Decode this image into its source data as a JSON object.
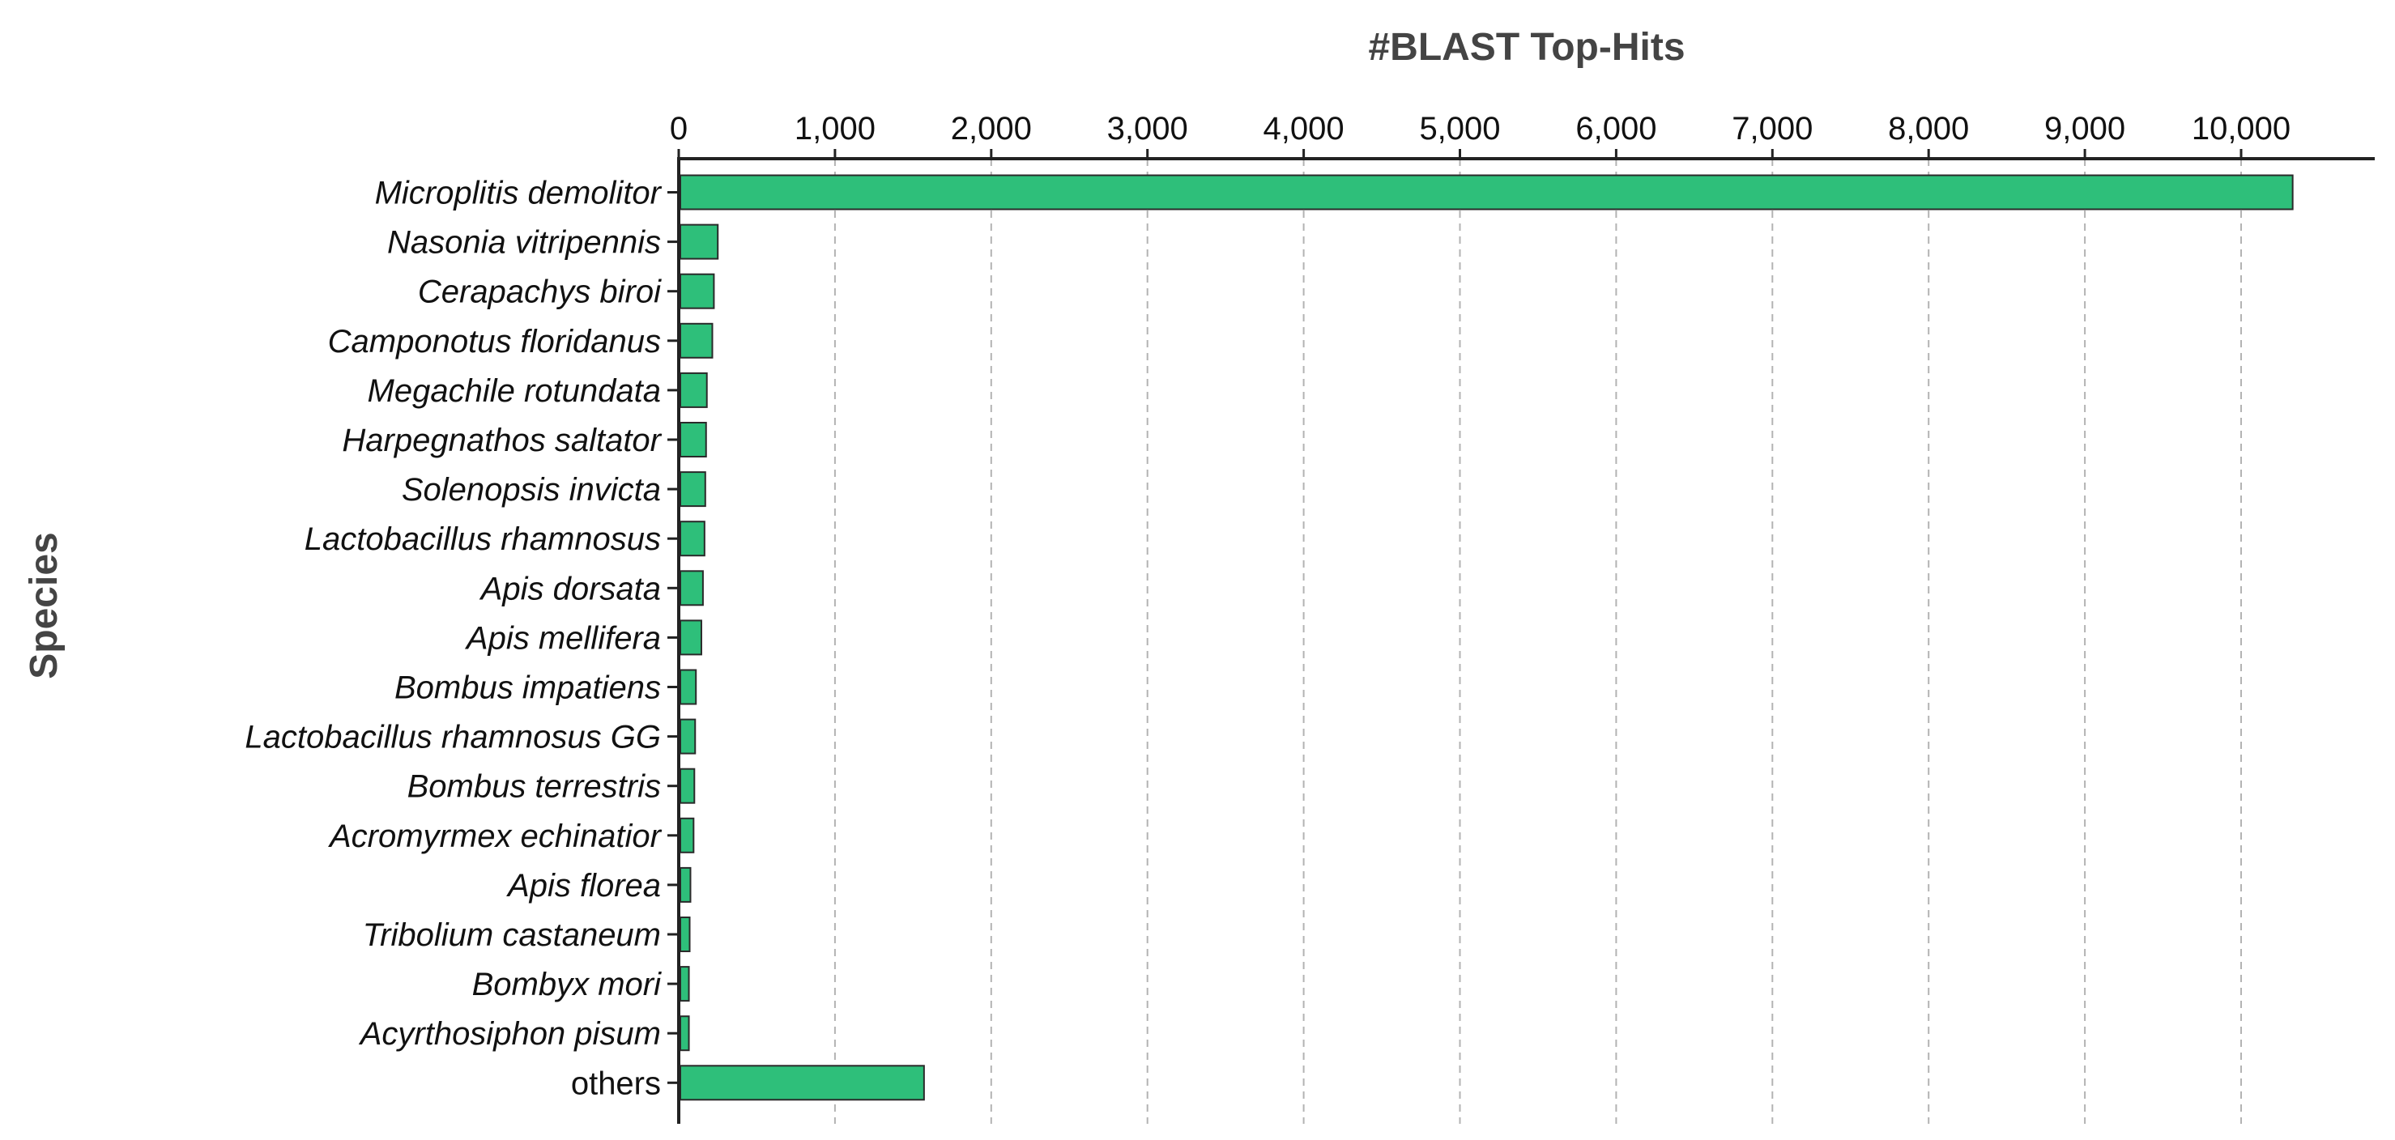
{
  "chart_data": {
    "type": "bar",
    "orientation": "horizontal",
    "xlabel": "#BLAST Top-Hits",
    "ylabel": "Species",
    "xaxis_position": "top",
    "xlim": [
      0,
      10800
    ],
    "xticks": [
      0,
      1000,
      2000,
      3000,
      4000,
      5000,
      6000,
      7000,
      8000,
      9000,
      10000
    ],
    "xtick_labels": [
      "0",
      "1,000",
      "2,000",
      "3,000",
      "4,000",
      "5,000",
      "6,000",
      "7,000",
      "8,000",
      "9,000",
      "10,000"
    ],
    "grid": "vertical dashed",
    "bar_color": "#2EBF7A",
    "categories": [
      "Microplitis demolitor",
      "Nasonia vitripennis",
      "Cerapachys biroi",
      "Camponotus floridanus",
      "Megachile rotundata",
      "Harpegnathos saltator",
      "Solenopsis invicta",
      "Lactobacillus rhamnosus",
      "Apis dorsata",
      "Apis mellifera",
      "Bombus impatiens",
      "Lactobacillus rhamnosus GG",
      "Bombus terrestris",
      "Acromyrmex echinatior",
      "Apis florea",
      "Tribolium castaneum",
      "Bombyx mori",
      "Acyrthosiphon pisum",
      "others"
    ],
    "italic_categories": [
      true,
      true,
      true,
      true,
      true,
      true,
      true,
      true,
      true,
      true,
      true,
      true,
      true,
      true,
      true,
      true,
      true,
      true,
      false
    ],
    "values": [
      10330,
      250,
      225,
      215,
      180,
      175,
      170,
      165,
      155,
      145,
      110,
      105,
      100,
      95,
      75,
      70,
      65,
      65,
      1570
    ]
  }
}
